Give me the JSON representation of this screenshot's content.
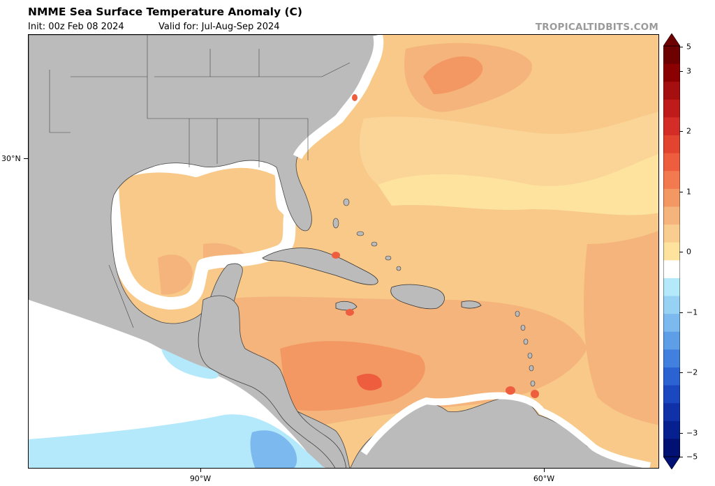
{
  "header": {
    "title": "NMME Sea Surface Temperature Anomaly (C)",
    "init": "Init: 00z Feb 08 2024",
    "valid": "Valid for: Jul-Aug-Sep 2024",
    "brand": "TROPICALTIDBITS.COM"
  },
  "axes": {
    "lat_labels": [
      "30°N"
    ],
    "lon_labels": [
      "90°W",
      "60°W"
    ]
  },
  "colorbar": {
    "labels": [
      "5",
      "3",
      "2",
      "1",
      "0",
      "−1",
      "−2",
      "−3",
      "−5"
    ],
    "colors": [
      "#6d0000",
      "#8b0000",
      "#a50f0f",
      "#c01b1b",
      "#d42d27",
      "#e3442f",
      "#ef5d3f",
      "#f27a4e",
      "#f39863",
      "#f5b47b",
      "#f8cd8f",
      "#fde39e",
      "#ffffff",
      "#b4e8fb",
      "#97d1f4",
      "#7bb9ee",
      "#5e9ee6",
      "#4180de",
      "#2b63d2",
      "#1b47c0",
      "#1031a8",
      "#07208f",
      "#001173"
    ]
  },
  "legend_colors": {
    "land": "#bbbbbb",
    "ocean_base": "#f8c989",
    "warm_core": "#f3a06e",
    "cool_water": "#b4e8fb"
  }
}
